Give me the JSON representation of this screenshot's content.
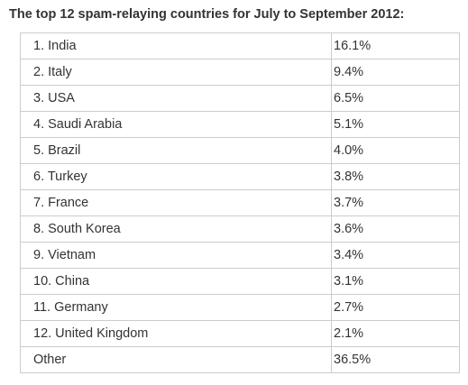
{
  "title": "The top 12 spam-relaying countries for July to September 2012:",
  "rows": [
    {
      "country": "1. India",
      "share": "16.1%"
    },
    {
      "country": "2. Italy",
      "share": "9.4%"
    },
    {
      "country": "3. USA",
      "share": "6.5%"
    },
    {
      "country": "4. Saudi Arabia",
      "share": "5.1%"
    },
    {
      "country": "5. Brazil",
      "share": "4.0%"
    },
    {
      "country": "6. Turkey",
      "share": "3.8%"
    },
    {
      "country": "7. France",
      "share": "3.7%"
    },
    {
      "country": "8. South Korea",
      "share": "3.6%"
    },
    {
      "country": "9. Vietnam",
      "share": "3.4%"
    },
    {
      "country": "10. China",
      "share": "3.1%"
    },
    {
      "country": "11. Germany",
      "share": "2.7%"
    },
    {
      "country": "12. United Kingdom",
      "share": "2.1%"
    },
    {
      "country": "Other",
      "share": "36.5%"
    }
  ]
}
